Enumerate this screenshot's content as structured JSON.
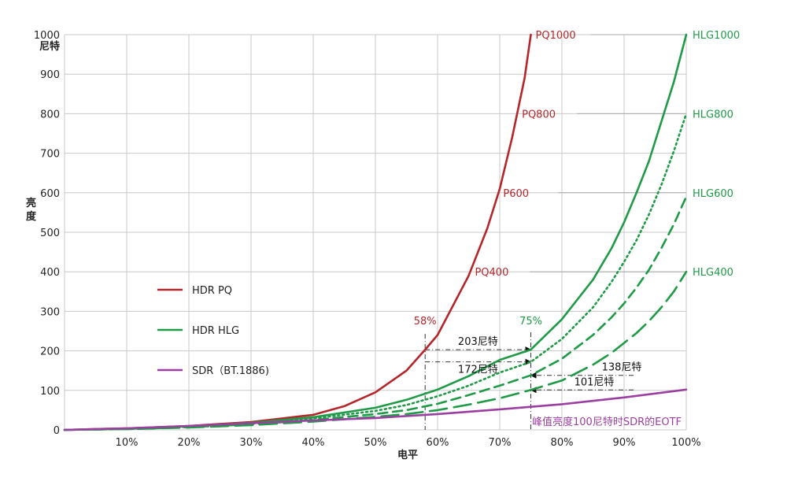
{
  "chart_data": {
    "type": "line",
    "xlabel": "电平",
    "ylabel_lines": [
      "亮",
      "度"
    ],
    "y_unit_label": "尼特",
    "xlim": [
      0,
      100
    ],
    "ylim": [
      0,
      1000
    ],
    "x_ticks": [
      10,
      20,
      30,
      40,
      50,
      60,
      70,
      80,
      90,
      100
    ],
    "x_tick_labels": [
      "10%",
      "20%",
      "30%",
      "40%",
      "50%",
      "60%",
      "70%",
      "80%",
      "90%",
      "100%"
    ],
    "y_ticks": [
      0,
      100,
      200,
      300,
      400,
      500,
      600,
      700,
      800,
      900,
      1000
    ],
    "y_tick_labels": [
      "0",
      "100",
      "200",
      "300",
      "400",
      "500",
      "600",
      "700",
      "800",
      "900",
      "1000"
    ],
    "grid": true,
    "colors": {
      "pq": "#b5262b",
      "hlg": "#1f9a47",
      "sdr": "#9b3fa0",
      "grid": "#c8c8c8"
    },
    "series": [
      {
        "key": "pq1000",
        "family": "pq",
        "dash": "solid",
        "label": "PQ1000",
        "x": [
          0,
          10,
          20,
          30,
          40,
          45,
          50,
          55,
          58,
          60,
          62,
          65,
          68,
          70,
          72,
          74,
          75
        ],
        "y": [
          0,
          4,
          10,
          20,
          38,
          60,
          95,
          150,
          203,
          240,
          300,
          390,
          510,
          610,
          740,
          890,
          1000
        ]
      },
      {
        "key": "hlg1000",
        "family": "hlg",
        "dash": "solid",
        "label": "HLG1000",
        "x": [
          0,
          10,
          20,
          30,
          40,
          50,
          55,
          60,
          65,
          70,
          75,
          80,
          85,
          88,
          90,
          92,
          94,
          96,
          98,
          100
        ],
        "y": [
          0,
          3,
          9,
          18,
          32,
          56,
          76,
          102,
          136,
          177,
          203,
          280,
          380,
          460,
          525,
          600,
          680,
          780,
          880,
          1000
        ]
      },
      {
        "key": "hlg800",
        "family": "hlg",
        "dash": "dotted",
        "label": "HLG800",
        "x": [
          0,
          10,
          20,
          30,
          40,
          50,
          55,
          60,
          65,
          70,
          75,
          80,
          85,
          88,
          90,
          92,
          94,
          96,
          98,
          100
        ],
        "y": [
          0,
          3,
          8,
          16,
          29,
          48,
          63,
          85,
          112,
          145,
          172,
          230,
          310,
          375,
          425,
          480,
          545,
          620,
          705,
          800
        ]
      },
      {
        "key": "hlg600",
        "family": "hlg",
        "dash": "dashed",
        "label": "HLG600",
        "x": [
          0,
          10,
          20,
          30,
          40,
          50,
          55,
          60,
          65,
          70,
          75,
          80,
          85,
          88,
          90,
          92,
          94,
          96,
          98,
          100
        ],
        "y": [
          0,
          2,
          7,
          14,
          25,
          40,
          50,
          66,
          88,
          112,
          138,
          180,
          240,
          285,
          320,
          360,
          405,
          460,
          520,
          590
        ]
      },
      {
        "key": "hlg400",
        "family": "hlg",
        "dash": "longdash",
        "label": "HLG400",
        "x": [
          0,
          10,
          20,
          30,
          40,
          50,
          55,
          60,
          65,
          70,
          75,
          80,
          85,
          88,
          90,
          92,
          94,
          96,
          98,
          100
        ],
        "y": [
          0,
          2,
          6,
          12,
          21,
          33,
          40,
          50,
          64,
          80,
          101,
          125,
          165,
          195,
          220,
          245,
          275,
          310,
          350,
          400
        ]
      },
      {
        "key": "sdr",
        "family": "sdr",
        "dash": "solid",
        "label": "",
        "x": [
          0,
          10,
          20,
          30,
          40,
          50,
          60,
          70,
          80,
          90,
          100
        ],
        "y": [
          0,
          4,
          10,
          17,
          24,
          30,
          40,
          52,
          65,
          82,
          102
        ]
      }
    ],
    "pq_level_labels": [
      {
        "text": "PQ1000",
        "y": 1000
      },
      {
        "text": "PQ800",
        "y": 800
      },
      {
        "text": "P600",
        "y": 600
      },
      {
        "text": "PQ400",
        "y": 400
      }
    ],
    "hlg_level_labels": [
      {
        "text": "HLG1000",
        "y": 1000
      },
      {
        "text": "HLG800",
        "y": 800
      },
      {
        "text": "HLG600",
        "y": 600
      },
      {
        "text": "HLG400",
        "y": 400
      }
    ],
    "legend": {
      "placement": "center-left",
      "entries": [
        {
          "label": "HDR PQ",
          "family": "pq"
        },
        {
          "label": "HDR HLG",
          "family": "hlg"
        },
        {
          "label": "SDR（BT.1886)",
          "family": "sdr"
        }
      ]
    },
    "annotations": {
      "pq_marker": {
        "x": 58,
        "y": 203,
        "label": "58%"
      },
      "hlg_marker": {
        "x": 75,
        "label": "75%"
      },
      "arrows": [
        {
          "y": 203,
          "label": "203尼特"
        },
        {
          "y": 172,
          "label": "172尼特"
        },
        {
          "y": 138,
          "label": "138尼特"
        },
        {
          "y": 101,
          "label": "101尼特"
        }
      ],
      "sdr_note": "峰值亮度100尼特时SDR的EOTF"
    }
  }
}
